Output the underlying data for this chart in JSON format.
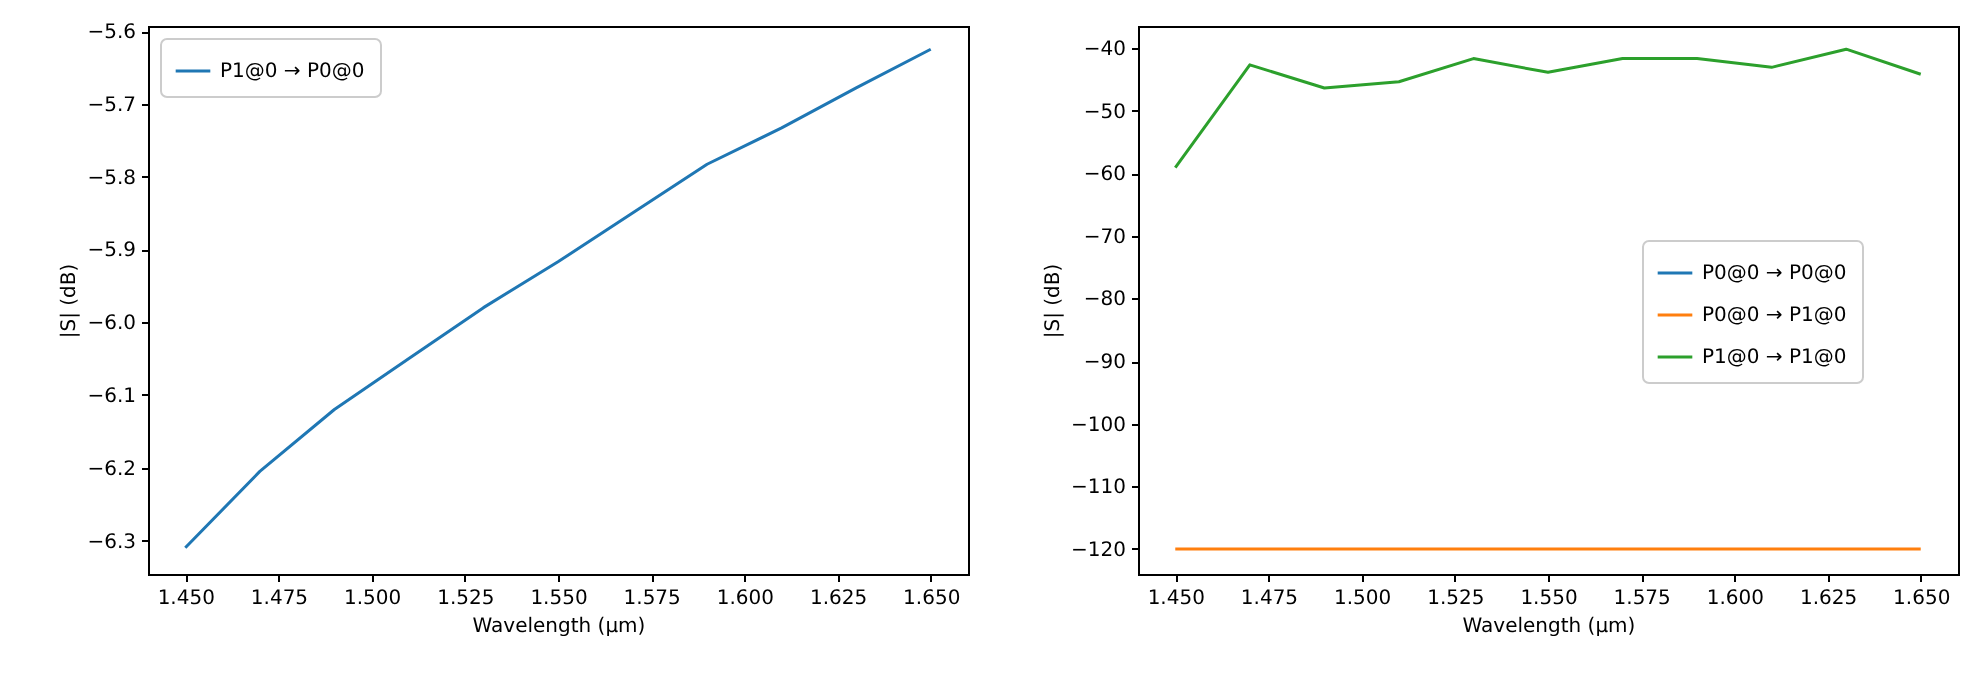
{
  "chart_data": [
    {
      "type": "line",
      "xlabel": "Wavelength (µm)",
      "ylabel": "|S| (dB)",
      "x": [
        1.45,
        1.47,
        1.49,
        1.51,
        1.53,
        1.55,
        1.57,
        1.59,
        1.61,
        1.63,
        1.65
      ],
      "series": [
        {
          "name": "P1@0 → P0@0",
          "color": "#1f77b4",
          "values": [
            -6.31,
            -6.205,
            -6.12,
            -6.05,
            -5.98,
            -5.917,
            -5.85,
            -5.783,
            -5.733,
            -5.678,
            -5.625
          ]
        }
      ],
      "xlim": [
        1.44,
        1.66
      ],
      "ylim": [
        -6.346,
        -5.593
      ],
      "xticks": [
        {
          "value": 1.45,
          "label": "1.450"
        },
        {
          "value": 1.475,
          "label": "1.475"
        },
        {
          "value": 1.5,
          "label": "1.500"
        },
        {
          "value": 1.525,
          "label": "1.525"
        },
        {
          "value": 1.55,
          "label": "1.550"
        },
        {
          "value": 1.575,
          "label": "1.575"
        },
        {
          "value": 1.6,
          "label": "1.600"
        },
        {
          "value": 1.625,
          "label": "1.625"
        },
        {
          "value": 1.65,
          "label": "1.650"
        }
      ],
      "yticks": [
        {
          "value": -6.3,
          "label": "−6.3"
        },
        {
          "value": -6.2,
          "label": "−6.2"
        },
        {
          "value": -6.1,
          "label": "−6.1"
        },
        {
          "value": -6.0,
          "label": "−6.0"
        },
        {
          "value": -5.9,
          "label": "−5.9"
        },
        {
          "value": -5.8,
          "label": "−5.8"
        },
        {
          "value": -5.7,
          "label": "−5.7"
        },
        {
          "value": -5.6,
          "label": "−5.6"
        }
      ],
      "legend": "top left",
      "marker": "none",
      "line_style": "solid"
    },
    {
      "type": "line",
      "xlabel": "Wavelength (µm)",
      "ylabel": "|S| (dB)",
      "x": [
        1.45,
        1.47,
        1.49,
        1.51,
        1.53,
        1.55,
        1.57,
        1.59,
        1.61,
        1.63,
        1.65
      ],
      "series": [
        {
          "name": "P0@0 → P0@0",
          "color": "#1f77b4",
          "values": [
            null,
            null,
            null,
            null,
            null,
            null,
            null,
            null,
            null,
            null,
            null
          ]
        },
        {
          "name": "P0@0 → P1@0",
          "color": "#ff7f0e",
          "values": [
            -120,
            -120,
            -120,
            -120,
            -120,
            -120,
            -120,
            -120,
            -120,
            -120,
            -120
          ]
        },
        {
          "name": "P1@0 → P1@0",
          "color": "#2ca02c",
          "values": [
            -59.1,
            -42.7,
            -46.4,
            -45.4,
            -41.7,
            -43.9,
            -41.7,
            -41.7,
            -43.1,
            -40.2,
            -44.2
          ]
        }
      ],
      "xlim": [
        1.44,
        1.66
      ],
      "ylim": [
        -124,
        -36.5
      ],
      "xticks": [
        {
          "value": 1.45,
          "label": "1.450"
        },
        {
          "value": 1.475,
          "label": "1.475"
        },
        {
          "value": 1.5,
          "label": "1.500"
        },
        {
          "value": 1.525,
          "label": "1.525"
        },
        {
          "value": 1.55,
          "label": "1.550"
        },
        {
          "value": 1.575,
          "label": "1.575"
        },
        {
          "value": 1.6,
          "label": "1.600"
        },
        {
          "value": 1.625,
          "label": "1.625"
        },
        {
          "value": 1.65,
          "label": "1.650"
        }
      ],
      "yticks": [
        -120,
        -110,
        -100,
        -90,
        -80,
        -70,
        -60,
        -50,
        -40
      ],
      "legend": "right",
      "marker": "none",
      "line_style": "solid"
    }
  ]
}
